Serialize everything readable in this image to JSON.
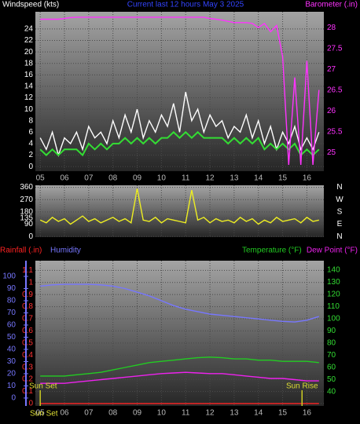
{
  "chart_data": [
    {
      "type": "line",
      "title": "Current last 12 hours May 3 2025",
      "xlim": [
        4.8,
        16.7
      ],
      "xticks": [
        {
          "value": 5,
          "label": "05"
        },
        {
          "value": 6,
          "label": "06"
        },
        {
          "value": 7,
          "label": "07"
        },
        {
          "value": 8,
          "label": "08"
        },
        {
          "value": 9,
          "label": "09"
        },
        {
          "value": 10,
          "label": "10"
        },
        {
          "value": 11,
          "label": "11"
        },
        {
          "value": 12,
          "label": "12"
        },
        {
          "value": 13,
          "label": "13"
        },
        {
          "value": 14,
          "label": "14"
        },
        {
          "value": 15,
          "label": "15"
        },
        {
          "value": 16,
          "label": "16"
        }
      ],
      "xtick_labels": true,
      "ylim": [
        -0.8,
        27
      ],
      "yticks": [
        0,
        2,
        4,
        6,
        8,
        10,
        12,
        14,
        16,
        18,
        20,
        22,
        24
      ],
      "y2lim": [
        24.55,
        28.38
      ],
      "y2ticks": [
        25,
        25.5,
        26,
        26.5,
        27,
        27.5,
        28
      ],
      "grid": true,
      "axis_colors": {
        "y": "#ffffff",
        "y2": "#ff33ff",
        "x": "#bbbbbb"
      },
      "x": [
        5,
        5.25,
        5.5,
        5.75,
        6,
        6.25,
        6.5,
        6.75,
        7,
        7.25,
        7.5,
        7.75,
        8,
        8.25,
        8.5,
        8.75,
        9,
        9.25,
        9.5,
        9.75,
        10,
        10.25,
        10.5,
        10.75,
        11,
        11.25,
        11.5,
        11.75,
        12,
        12.25,
        12.5,
        12.75,
        13,
        13.25,
        13.5,
        13.75,
        14,
        14.25,
        14.5,
        14.75,
        15,
        15.25,
        15.5,
        15.75,
        16,
        16.25,
        16.5
      ],
      "series": [
        {
          "name": "Windspeed (kts)",
          "color": "#ffffff",
          "axis": "y",
          "values": [
            5,
            3,
            6,
            2,
            5,
            4,
            6,
            3,
            7,
            5,
            6,
            4,
            8,
            5,
            9,
            6,
            10,
            5,
            8,
            6,
            9,
            7,
            11,
            6,
            13,
            8,
            10,
            6,
            9,
            7,
            8,
            5,
            7,
            6,
            9,
            5,
            8,
            4,
            7,
            3,
            6,
            4,
            7,
            3,
            5,
            3,
            6
          ]
        },
        {
          "color": "#33dd33",
          "axis": "y",
          "values": [
            3,
            2,
            3,
            2,
            3,
            3,
            3,
            2,
            4,
            3,
            4,
            3,
            4,
            4,
            5,
            4,
            5,
            4,
            5,
            4,
            5,
            5,
            6,
            5,
            6,
            5,
            6,
            5,
            5,
            5,
            5,
            4,
            5,
            4,
            5,
            4,
            5,
            3,
            4,
            3,
            4,
            3,
            4,
            2,
            3,
            2,
            3
          ]
        },
        {
          "name": "Barometer (.in)",
          "color": "#ff33ff",
          "axis": "y2",
          "values": [
            28.2,
            28.2,
            28.2,
            28.2,
            28.22,
            28.24,
            28.25,
            28.25,
            28.25,
            28.25,
            28.25,
            28.25,
            28.25,
            28.25,
            28.25,
            28.25,
            28.25,
            28.25,
            28.25,
            28.25,
            28.25,
            28.25,
            28.25,
            28.25,
            28.25,
            28.25,
            28.25,
            28.25,
            28.22,
            28.2,
            28.18,
            28.15,
            28.12,
            28.12,
            28.12,
            28.1,
            28.0,
            28.1,
            27.9,
            28.05,
            27.3,
            24.7,
            26.8,
            24.7,
            27.2,
            24.7,
            26.5
          ]
        }
      ]
    },
    {
      "type": "line",
      "xlim": [
        4.8,
        16.7
      ],
      "xticks": [
        5,
        6,
        7,
        8,
        9,
        10,
        11,
        12,
        13,
        14,
        15,
        16
      ],
      "xtick_labels": false,
      "ylim": [
        -5,
        375
      ],
      "yticks": [
        0,
        90,
        135,
        180,
        270,
        360
      ],
      "grid": true,
      "axis_colors": {
        "y": "#ffffff"
      },
      "compass": [
        {
          "value": 360,
          "label": "N"
        },
        {
          "value": 270,
          "label": "W"
        },
        {
          "value": 180,
          "label": "S"
        },
        {
          "value": 90,
          "label": "E"
        },
        {
          "value": 0,
          "label": "N"
        }
      ],
      "x": [
        5,
        5.25,
        5.5,
        5.75,
        6,
        6.25,
        6.5,
        6.75,
        7,
        7.25,
        7.5,
        7.75,
        8,
        8.25,
        8.5,
        8.75,
        9,
        9.25,
        9.5,
        9.75,
        10,
        10.25,
        10.5,
        10.75,
        11,
        11.25,
        11.5,
        11.75,
        12,
        12.25,
        12.5,
        12.75,
        13,
        13.25,
        13.5,
        13.75,
        14,
        14.25,
        14.5,
        14.75,
        15,
        15.25,
        15.5,
        15.75,
        16,
        16.25,
        16.5
      ],
      "series": [
        {
          "color": "#eeee22",
          "axis": "y",
          "values": [
            120,
            100,
            140,
            110,
            130,
            90,
            120,
            150,
            110,
            130,
            100,
            120,
            140,
            110,
            130,
            100,
            350,
            120,
            110,
            140,
            100,
            130,
            120,
            110,
            100,
            340,
            120,
            140,
            100,
            130,
            110,
            120,
            100,
            140,
            110,
            130,
            90,
            120,
            100,
            140,
            110,
            120,
            130,
            100,
            140,
            110,
            120
          ]
        }
      ]
    },
    {
      "type": "line",
      "xlim": [
        4.8,
        16.7
      ],
      "xticks": [
        {
          "value": 5,
          "label": "05"
        },
        {
          "value": 6,
          "label": "06"
        },
        {
          "value": 7,
          "label": "07"
        },
        {
          "value": 8,
          "label": "08"
        },
        {
          "value": 9,
          "label": "09"
        },
        {
          "value": 10,
          "label": "10"
        },
        {
          "value": 11,
          "label": "11"
        },
        {
          "value": 12,
          "label": "12"
        },
        {
          "value": 13,
          "label": "13"
        },
        {
          "value": 14,
          "label": "14"
        },
        {
          "value": 15,
          "label": "15"
        },
        {
          "value": 16,
          "label": "16"
        }
      ],
      "xtick_labels": true,
      "ylim": [
        -0.02,
        1.18
      ],
      "yticks": [
        0,
        0.1,
        0.2,
        0.3,
        0.4,
        0.5,
        0.6,
        0.7,
        0.8,
        0.9,
        1,
        1.1
      ],
      "y2lim": [
        28.4,
        147.7
      ],
      "y2ticks": [
        40,
        50,
        60,
        70,
        80,
        90,
        100,
        110,
        120,
        130,
        140
      ],
      "y3lim": [
        -6.5,
        112.9
      ],
      "y3ticks": [
        0,
        10,
        20,
        30,
        40,
        50,
        60,
        70,
        80,
        90,
        100
      ],
      "grid": true,
      "axis_colors": {
        "y": "#ff3333",
        "y2": "#33dd33",
        "y3": "#7777ff",
        "x": "#bbbbbb"
      },
      "annotations": [
        {
          "text": "Sun Set",
          "x": 5.0
        },
        {
          "text": "Sun Rise",
          "x": 15.8
        }
      ],
      "x": [
        5,
        5.5,
        6,
        6.5,
        7,
        7.5,
        8,
        8.5,
        9,
        9.5,
        10,
        10.5,
        11,
        11.5,
        12,
        12.5,
        13,
        13.5,
        14,
        14.5,
        15,
        15.5,
        16,
        16.5
      ],
      "series": [
        {
          "name": "Rainfall (.in)",
          "color": "#ff2222",
          "axis": "y",
          "values": [
            0,
            0,
            0,
            0,
            0,
            0,
            0,
            0,
            0,
            0,
            0,
            0,
            0,
            0,
            0,
            0,
            0,
            0,
            0,
            0,
            0,
            0,
            0,
            0
          ]
        },
        {
          "name": "Humidity",
          "color": "#7777ff",
          "axis": "y3",
          "values": [
            92,
            93,
            93.5,
            93.5,
            93.5,
            93,
            92,
            90,
            87,
            84,
            80,
            76,
            73,
            71,
            69,
            68,
            67,
            66,
            65,
            64,
            63,
            62.5,
            64,
            67
          ]
        },
        {
          "name": "Temperature (°F)",
          "color": "#22cc22",
          "axis": "y2",
          "values": [
            53,
            53,
            53,
            54,
            55,
            56,
            58,
            60,
            62,
            64,
            65,
            66,
            67,
            68,
            68.5,
            68,
            67,
            67,
            66,
            66,
            65,
            65,
            65,
            64
          ]
        },
        {
          "name": "Dew Point (°F)",
          "color": "#ee22ee",
          "axis": "y2",
          "values": [
            47,
            47,
            47,
            48,
            49,
            50,
            51,
            52,
            53,
            54,
            55,
            55.5,
            56,
            55.5,
            55,
            55,
            54,
            53,
            52,
            51,
            51,
            50,
            49,
            49
          ]
        }
      ]
    }
  ]
}
